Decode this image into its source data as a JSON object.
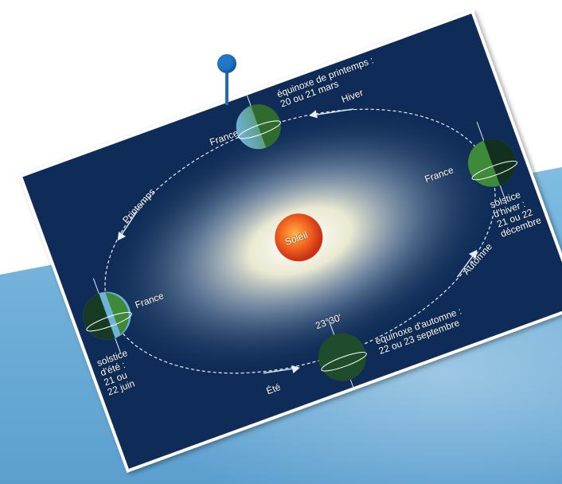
{
  "diagram": {
    "sun_label": "Soleil",
    "seasons": {
      "spring": "Printemps",
      "winter": "Hiver",
      "autumn": "Automne",
      "summer": "Été"
    },
    "positions": {
      "spring_equinox": "équinoxe de printemps :\n20 ou 21 mars",
      "winter_solstice": "solstice\nd'hiver :\n21 ou 22\ndécembre",
      "autumn_equinox": "équinoxe d'automne :\n22 ou 23 septembre",
      "summer_solstice": "solstice\nd'été :\n21 ou\n22 juin"
    },
    "france_label": "France",
    "tilt_label": "23°30'"
  },
  "colors": {
    "card_background": "#0e2c57",
    "sun": "#e8461e",
    "pin": "#1f78c8"
  }
}
